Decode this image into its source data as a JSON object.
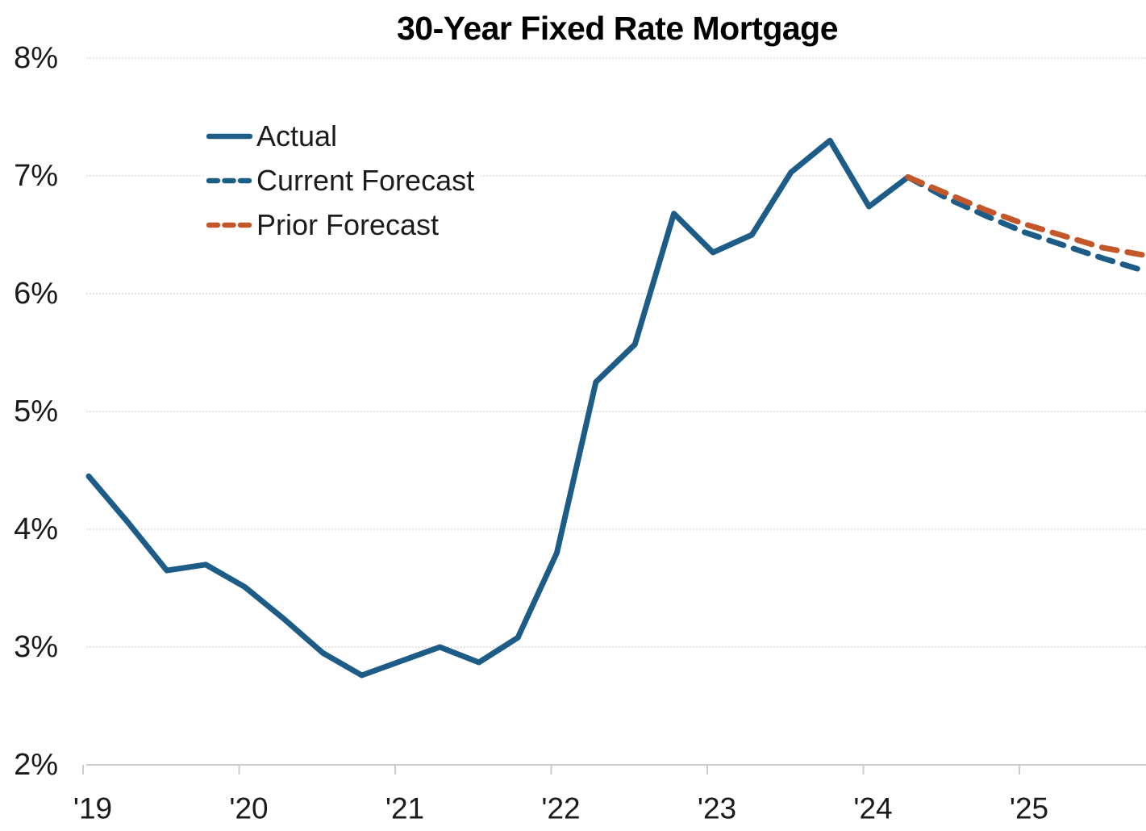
{
  "chart_data": {
    "type": "line",
    "title": "30-Year Fixed Rate Mortgage",
    "frequency": "quarterly",
    "grid": "horizontal",
    "background": "#ffffff",
    "text_color": "#1a1a1a",
    "grid_color": "#d2d2d2",
    "axis_color": "#cccccc",
    "y_axis": {
      "range": [
        2,
        8
      ],
      "format": "percent",
      "ticks": [
        {
          "label": "8%",
          "value": 8
        },
        {
          "label": "7%",
          "value": 7
        },
        {
          "label": "6%",
          "value": 6
        },
        {
          "label": "5%",
          "value": 5
        },
        {
          "label": "4%",
          "value": 4
        },
        {
          "label": "3%",
          "value": 3
        },
        {
          "label": "2%",
          "value": 2
        }
      ]
    },
    "x_axis": {
      "range": [
        2018.92,
        2025.78
      ],
      "ticks": [
        {
          "label": "'19",
          "year": 2019
        },
        {
          "label": "'20",
          "year": 2020
        },
        {
          "label": "'21",
          "year": 2021
        },
        {
          "label": "'22",
          "year": 2022
        },
        {
          "label": "'23",
          "year": 2023
        },
        {
          "label": "'24",
          "year": 2024
        },
        {
          "label": "'25",
          "year": 2025
        }
      ]
    },
    "legend": {
      "position": "upper-left-inside",
      "items": [
        {
          "label": "Actual",
          "dashed": false,
          "color": "#1D5C87"
        },
        {
          "label": "Current Forecast",
          "dashed": true,
          "color": "#1D5C87"
        },
        {
          "label": "Prior Forecast",
          "dashed": true,
          "color": "#C3572A"
        }
      ]
    },
    "series": [
      {
        "name": "Actual",
        "style": "solid",
        "color": "#1D5C87",
        "points": [
          [
            2019.0,
            4.45
          ],
          [
            2019.25,
            4.06
          ],
          [
            2019.5,
            3.65
          ],
          [
            2019.75,
            3.7
          ],
          [
            2020.0,
            3.51
          ],
          [
            2020.25,
            3.24
          ],
          [
            2020.5,
            2.95
          ],
          [
            2020.75,
            2.76
          ],
          [
            2021.0,
            2.88
          ],
          [
            2021.25,
            3.0
          ],
          [
            2021.5,
            2.87
          ],
          [
            2021.75,
            3.08
          ],
          [
            2022.0,
            3.8
          ],
          [
            2022.25,
            5.25
          ],
          [
            2022.5,
            5.57
          ],
          [
            2022.75,
            6.68
          ],
          [
            2023.0,
            6.35
          ],
          [
            2023.25,
            6.5
          ],
          [
            2023.5,
            7.03
          ],
          [
            2023.75,
            7.3
          ],
          [
            2024.0,
            6.74
          ],
          [
            2024.25,
            6.99
          ]
        ]
      },
      {
        "name": "Current Forecast",
        "style": "dashed",
        "color": "#1D5C87",
        "points": [
          [
            2024.25,
            6.99
          ],
          [
            2024.5,
            6.81
          ],
          [
            2024.75,
            6.66
          ],
          [
            2025.0,
            6.52
          ],
          [
            2025.25,
            6.41
          ],
          [
            2025.5,
            6.3
          ],
          [
            2025.75,
            6.2
          ]
        ]
      },
      {
        "name": "Prior Forecast",
        "style": "dashed",
        "color": "#C3572A",
        "points": [
          [
            2024.25,
            6.99
          ],
          [
            2024.5,
            6.85
          ],
          [
            2024.75,
            6.71
          ],
          [
            2025.0,
            6.59
          ],
          [
            2025.25,
            6.49
          ],
          [
            2025.5,
            6.39
          ],
          [
            2025.75,
            6.33
          ]
        ]
      }
    ]
  }
}
